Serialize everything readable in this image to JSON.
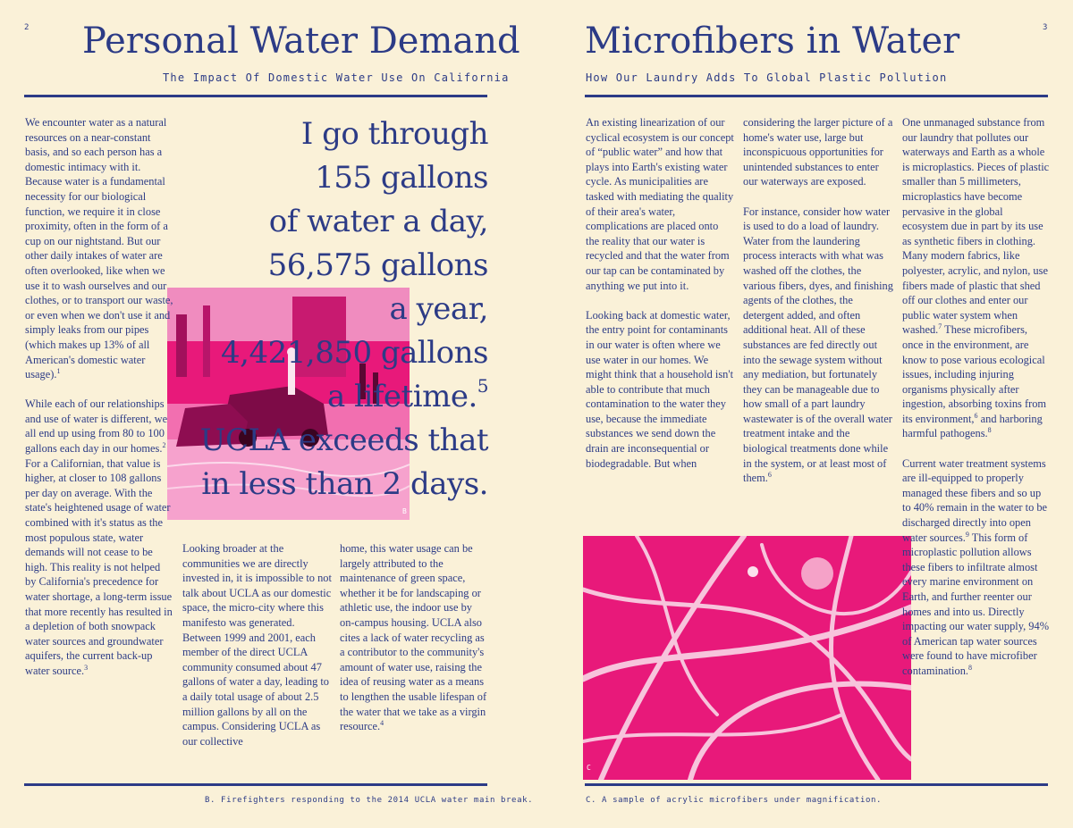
{
  "left_page": {
    "page_number": "2",
    "title": "Personal Water Demand",
    "subtitle": "The Impact Of Domestic Water Use On California",
    "col1": {
      "p1": "We encounter water as a natural resources on a near-constant basis, and so each person has a domestic intimacy with it. Because water is a fundamental necessity for our biological function, we require it in close proximity, often in the form of a cup on our nightstand. But our other daily intakes of water are often overlooked, like when we use it to wash ourselves and our clothes, or to transport our waste, or even when we don't use it and simply leaks from our pipes (which makes up 13% of all American's domestic water usage).",
      "p1_ref": "1",
      "p2": "While each of our relationships and use of water is different, we all end up using from 80 to 100 gallons each day in our homes.",
      "p2_ref": "2",
      "p2b": " For a Californian, that value is higher, at closer to 108 gallons per day on average. With the state's heightened usage of water combined with it's status as the most populous state, water demands will not cease to be high. This reality is not helped by California's precedence for water shortage, a long-term issue that more recently has resulted in a depletion of both snowpack water sources and groundwater aquifers, the current back-up water source.",
      "p2b_ref": "3"
    },
    "col2": {
      "text": "Looking broader at the communities we are directly invested in, it is impossible to not talk about UCLA as our domestic space, the micro-city where this manifesto was generated. Between 1999 and 2001, each member of the direct UCLA community consumed about 47 gallons of water a day, leading to a daily total usage of about 2.5 million gallons by all on the campus. Considering UCLA as our collective"
    },
    "col3": {
      "text": "home, this water usage can be largely attributed to the maintenance of green space, whether it be for landscaping or athletic use, the indoor use by on-campus housing. UCLA also cites a lack of water recycling as a contributor to the community's amount of water use, raising the idea of reusing water as a means to lengthen the usable lifespan of the water that we take as a virgin resource.",
      "ref": "4"
    },
    "pull_quote": {
      "line1": "I go through",
      "line2": "155 gallons",
      "line3": "of water a day,",
      "line4": "56,575 gallons",
      "line5": "a year,",
      "line6": "4,421,850 gallons",
      "line7": "a lifetime.",
      "line7_ref": "5",
      "line8": "UCLA exceeds that",
      "line9": "in less than 2 days."
    },
    "photo_label": "B",
    "caption": "B. Firefighters responding to the 2014 UCLA water main break."
  },
  "right_page": {
    "page_number": "3",
    "title": "Microfibers in Water",
    "subtitle": "How Our Laundry Adds To Global Plastic Pollution",
    "col1": {
      "p1": "An existing linearization of our cyclical ecosystem is our concept of “public water” and how that plays into Earth's existing water cycle. As municipalities are tasked with mediating the quality of their area's water, complications are placed onto the reality that our water is recycled and that the water from our tap can be contaminated by anything we put into it.",
      "p2": "Looking back at domestic water, the entry point for contaminants in our water is often where we use water in our homes. We might think that a household isn't able to contribute that much contamination to the water they use, because the immediate substances we send down the drain are inconsequential or biodegradable. But when"
    },
    "col2": {
      "p1": "considering the larger picture of a home's water use, large but inconspicuous opportunities for unintended substances to enter our waterways are exposed.",
      "p2": "For instance, consider how water is used to do a load of laundry. Water from the laundering process interacts with what was washed off the clothes, the various fibers, dyes, and finishing agents of the clothes, the detergent added, and often additional heat. All of these substances are fed directly out into the sewage system without any mediation, but fortunately they can be manageable due to how small of a part laundry wastewater is of the overall water treatment intake and the biological treatments done while in the system, or at least most of them.",
      "p2_ref": "6"
    },
    "col3": {
      "p1": "One unmanaged substance from our laundry that pollutes our waterways and Earth as a whole is microplastics. Pieces of plastic smaller than 5 millimeters, microplastics have become pervasive in the global ecosystem due in part by its use as synthetic fibers in clothing. Many modern fabrics, like polyester, acrylic, and nylon, use fibers made of plastic that shed off our clothes and enter our public water system when washed.",
      "p1_ref": "7",
      "p1b": " These microfibers, once in the environment, are know to pose various ecological issues, including injuring organisms physically after ingestion, absorbing toxins from its environment,",
      "p1b_ref": "6",
      "p1c": " and harboring harmful pathogens.",
      "p1c_ref": "8",
      "p2": "Current water treatment systems are ill-equipped to properly managed these fibers and so up to 40% remain in the water to be discharged directly into open water sources.",
      "p2_ref": "9",
      "p2b": " This form of microplastic pollution allows these fibers to infiltrate almost every marine environment on Earth, and further reenter our homes and into us. Directly impacting our water supply, 94% of American tap water sources were found to have microfiber contamination.",
      "p2b_ref": "8"
    },
    "photo_label": "C",
    "caption": "C. A sample of acrylic microfibers under magnification."
  },
  "colors": {
    "ink": "#2c3b86",
    "paper": "#faf1d8",
    "magenta": "#e8197a"
  }
}
